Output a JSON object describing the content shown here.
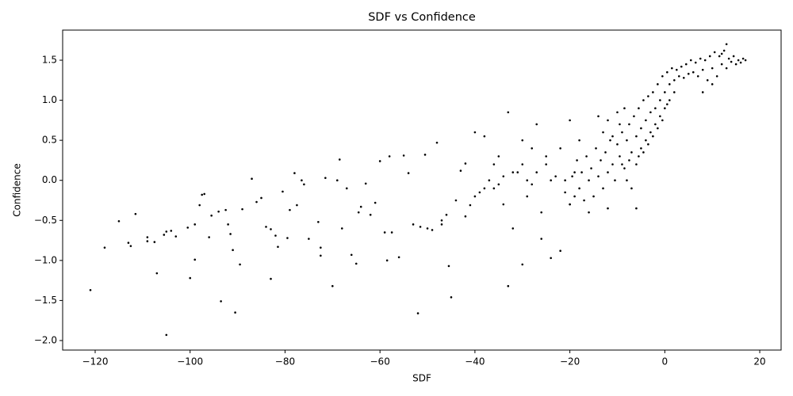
{
  "chart_data": {
    "type": "scatter",
    "title": "SDF vs Confidence",
    "x_label": "SDF",
    "y_label": "Confidence",
    "color": "#000000",
    "grid": false,
    "xlim": [
      -126.85,
      24.5
    ],
    "ylim": [
      -2.119,
      1.876
    ],
    "xticks": [
      {
        "value": -120,
        "label": "−120"
      },
      {
        "value": -100,
        "label": "−100"
      },
      {
        "value": -80,
        "label": "−80"
      },
      {
        "value": -60,
        "label": "−60"
      },
      {
        "value": -40,
        "label": "−40"
      },
      {
        "value": -20,
        "label": "−20"
      },
      0,
      20
    ],
    "yticks": [
      {
        "value": -2,
        "label": "−2.0"
      },
      {
        "value": -1.5,
        "label": "−1.5"
      },
      {
        "value": -1,
        "label": "−1.0"
      },
      {
        "value": -0.5,
        "label": "−0.5"
      },
      {
        "value": 0,
        "label": "0.0"
      },
      0.5,
      {
        "value": 1,
        "label": "1.0"
      },
      1.5
    ],
    "x": [
      -121,
      -118,
      -115,
      -113,
      -112.5,
      -111.5,
      -109,
      -109,
      -107.5,
      -107,
      -105.5,
      -105,
      -105,
      -104,
      -103,
      -100.5,
      -100,
      -99,
      -99,
      -98,
      -97.5,
      -97,
      -96,
      -95.5,
      -94,
      -93.5,
      -92.5,
      -92,
      -91.5,
      -91,
      -90.5,
      -89.5,
      -89,
      -87,
      -86,
      -85,
      -84,
      -83,
      -83,
      -82,
      -81.5,
      -80.5,
      -79.5,
      -79,
      -78,
      -77.5,
      -76.5,
      -76,
      -75,
      -73,
      -72.5,
      -72.5,
      -71.5,
      -70,
      -69,
      -68.5,
      -68,
      -67,
      -66,
      -65,
      -64.5,
      -64,
      -63,
      -62,
      -61,
      -60,
      -59,
      -58.5,
      -58,
      -57.5,
      -56,
      -55,
      -54,
      -53,
      -52,
      -51.5,
      -50.5,
      -49,
      -48,
      -47,
      -46,
      -45.5,
      -45,
      -44,
      -43,
      -42,
      -41,
      -40,
      -39,
      -38,
      -37,
      -36,
      -35,
      -34,
      -33,
      -32,
      -31,
      -30,
      -30,
      -29,
      -28,
      -27,
      -26,
      -25,
      -24,
      -23,
      -22,
      -21,
      -20,
      -19,
      -36,
      -34,
      -32,
      -38,
      -42,
      -47,
      -50,
      -40,
      -35,
      -33,
      -21,
      -20,
      -19.5,
      -19,
      -18.5,
      -18,
      -17.5,
      -17,
      -16.5,
      -16,
      -15.5,
      -15,
      -14.5,
      -14,
      -13.5,
      -13,
      -12.5,
      -12,
      -11.5,
      -11,
      -10.5,
      -10,
      -9.5,
      -9,
      -8.5,
      -8,
      -7.5,
      -7,
      -6.5,
      -6,
      -5.5,
      -5,
      -4.5,
      -4,
      -3.5,
      -3,
      -2.5,
      -2,
      -1.5,
      -1,
      -0.5,
      0,
      0.5,
      1,
      1.5,
      2,
      2.5,
      3,
      3.5,
      4,
      4.5,
      5,
      5.5,
      6,
      6.5,
      7,
      7.5,
      8,
      8.5,
      9,
      9.5,
      10,
      10.5,
      11,
      11.5,
      12,
      12.5,
      13,
      13.5,
      14,
      14.5,
      15,
      15.5,
      16,
      16.5,
      17,
      13,
      12,
      10,
      8,
      -14,
      -13,
      -12,
      -11,
      -10,
      -9,
      -8,
      -7,
      -6,
      -5,
      -4,
      -3,
      -2,
      -1,
      0,
      1,
      2,
      -6,
      -12,
      -16,
      -18,
      -20,
      -22,
      -24,
      -25,
      -26,
      -27,
      -28,
      -29,
      -30,
      -7.5,
      -8.5,
      -9.5,
      -5.5,
      -4.5,
      -3.5,
      -2.5,
      -1.5,
      -0.5,
      0.5
    ],
    "values": [
      -1.37,
      -0.84,
      -0.51,
      -0.78,
      -0.82,
      -0.42,
      -0.71,
      -0.76,
      -0.77,
      -1.16,
      -0.68,
      -0.64,
      -1.93,
      -0.63,
      -0.7,
      -0.59,
      -1.22,
      -0.55,
      -0.99,
      -0.31,
      -0.18,
      -0.17,
      -0.71,
      -0.44,
      -0.39,
      -1.51,
      -0.37,
      -0.55,
      -0.67,
      -0.87,
      -1.65,
      -1.05,
      -0.36,
      0.02,
      -0.27,
      -0.22,
      -0.58,
      -0.61,
      -1.23,
      -0.69,
      -0.83,
      -0.14,
      -0.72,
      -0.37,
      0.09,
      -0.31,
      0,
      -0.05,
      -0.73,
      -0.52,
      -0.84,
      -0.94,
      0.03,
      -1.32,
      0,
      0.26,
      -0.6,
      -0.1,
      -0.93,
      -1.04,
      -0.4,
      -0.33,
      -0.04,
      -0.43,
      -0.28,
      0.24,
      -0.65,
      -1,
      0.3,
      -0.65,
      -0.96,
      0.31,
      0.09,
      -0.55,
      -1.66,
      -0.58,
      0.32,
      -0.62,
      0.47,
      -0.5,
      -0.43,
      -1.07,
      -1.46,
      -0.25,
      0.12,
      0.21,
      -0.31,
      0.6,
      -0.15,
      -0.1,
      0,
      0.2,
      0.3,
      -0.3,
      -1.32,
      -0.6,
      0.1,
      -1.05,
      0.5,
      0,
      -0.05,
      0.7,
      -0.73,
      0.2,
      -0.97,
      0.05,
      -0.88,
      0,
      -0.3,
      0.1,
      -0.1,
      0.05,
      0.1,
      0.55,
      -0.45,
      -0.55,
      -0.6,
      -0.2,
      -0.05,
      0.85,
      -0.15,
      -0.3,
      0.05,
      -0.2,
      0.25,
      -0.1,
      0.1,
      -0.25,
      0.3,
      0,
      0.15,
      -0.2,
      0.4,
      0.05,
      0.25,
      -0.1,
      0.35,
      0.1,
      0.5,
      0.2,
      0,
      0.45,
      0.3,
      0.6,
      0.15,
      0.5,
      0.7,
      0.35,
      0.8,
      0.55,
      0.9,
      0.65,
      1,
      0.75,
      1.05,
      0.85,
      1.1,
      0.9,
      1.2,
      1,
      1.3,
      1.1,
      1.35,
      1.2,
      1.4,
      1.25,
      1.38,
      1.3,
      1.42,
      1.28,
      1.45,
      1.33,
      1.5,
      1.35,
      1.47,
      1.3,
      1.52,
      1.38,
      1.5,
      1.25,
      1.55,
      1.4,
      1.6,
      1.3,
      1.55,
      1.45,
      1.62,
      1.4,
      1.52,
      1.48,
      1.55,
      1.45,
      1.5,
      1.47,
      1.52,
      1.5,
      1.7,
      1.58,
      1.2,
      1.1,
      0.8,
      0.6,
      0.75,
      0.55,
      0.85,
      0.2,
      0,
      -0.1,
      0.2,
      0.4,
      0.5,
      0.6,
      0.7,
      0.8,
      0.9,
      1,
      1.1,
      -0.35,
      -0.35,
      -0.4,
      0.5,
      0.75,
      0.4,
      0,
      0.3,
      -0.4,
      0.1,
      0.4,
      -0.2,
      0.2,
      0.25,
      0.9,
      0.7,
      0.3,
      0.35,
      0.45,
      0.55,
      0.65,
      0.75,
      0.95
    ]
  }
}
